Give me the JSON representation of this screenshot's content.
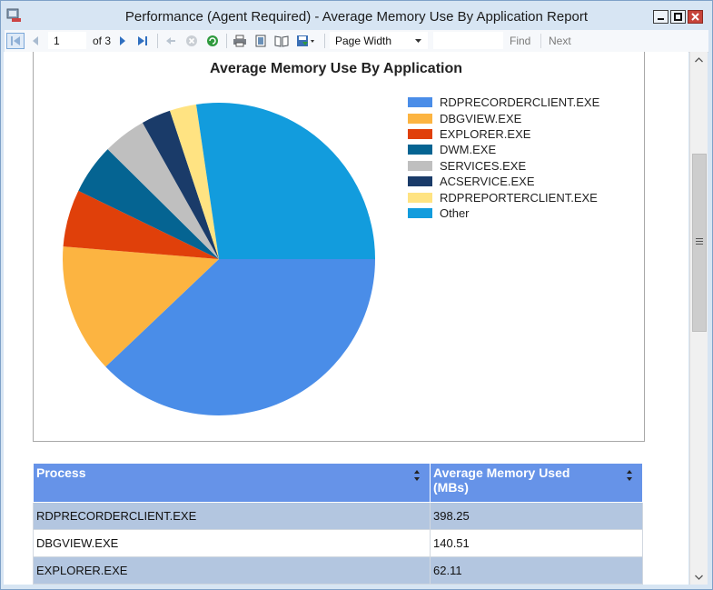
{
  "window": {
    "title": "Performance (Agent Required) - Average Memory Use By Application Report"
  },
  "toolbar": {
    "page_current": "1",
    "page_of_label": "of 3",
    "zoom": "Page Width",
    "find_label": "Find",
    "next_label": "Next"
  },
  "chart_data": {
    "type": "pie",
    "title": "Average Memory Use By Application",
    "categories": [
      "RDPRECORDERCLIENT.EXE",
      "DBGVIEW.EXE",
      "EXPLORER.EXE",
      "DWM.EXE",
      "SERVICES.EXE",
      "ACSERVICE.EXE",
      "RDPREPORTERCLIENT.EXE",
      "Other"
    ],
    "values": [
      398.25,
      140.51,
      62.11,
      54.6,
      47.0,
      32.0,
      29.0,
      287.0
    ],
    "colors": [
      "#4a8de8",
      "#fcb441",
      "#e0400a",
      "#056492",
      "#bfbfbf",
      "#1a3b69",
      "#ffe382",
      "#129cdd"
    ],
    "legend_position": "right"
  },
  "table": {
    "headers": [
      "Process",
      "Average Memory Used (MBs)"
    ],
    "rows": [
      [
        "RDPRECORDERCLIENT.EXE",
        "398.25"
      ],
      [
        "DBGVIEW.EXE",
        "140.51"
      ],
      [
        "EXPLORER.EXE",
        "62.11"
      ]
    ]
  }
}
